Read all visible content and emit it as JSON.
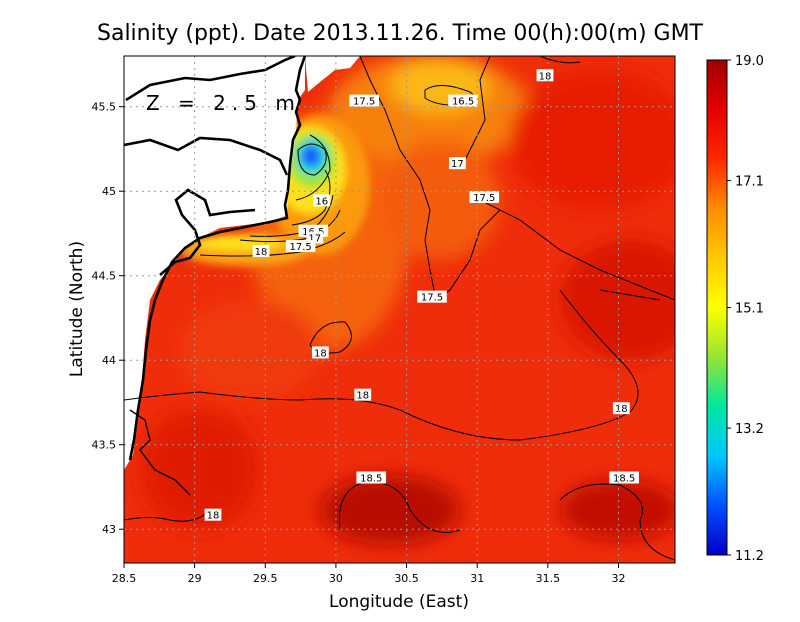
{
  "chart_data": {
    "type": "heatmap",
    "title": "Salinity (ppt). Date 2013.11.26. Time 00(h):00(m) GMT",
    "xlabel": "Longitude (East)",
    "ylabel": "Latitude (North)",
    "annotation": "Z = 2.5 m",
    "xlim": [
      28.5,
      32.4
    ],
    "ylim": [
      42.8,
      45.8
    ],
    "x_ticks": [
      {
        "value": 28.5,
        "label": "28.5"
      },
      {
        "value": 29,
        "label": "29"
      },
      {
        "value": 29.5,
        "label": "29.5"
      },
      {
        "value": 30,
        "label": "30"
      },
      {
        "value": 30.5,
        "label": "30.5"
      },
      {
        "value": 31,
        "label": "31"
      },
      {
        "value": 31.5,
        "label": "31.5"
      },
      {
        "value": 32,
        "label": "32"
      }
    ],
    "y_ticks": [
      {
        "value": 43,
        "label": "43"
      },
      {
        "value": 43.5,
        "label": "43.5"
      },
      {
        "value": 44,
        "label": "44"
      },
      {
        "value": 44.5,
        "label": "44.5"
      },
      {
        "value": 45,
        "label": "45"
      },
      {
        "value": 45.5,
        "label": "45.5"
      }
    ],
    "grid": true,
    "colorbar": {
      "min": 11.2,
      "max": 19.0,
      "ticks": [
        {
          "value": 19.0,
          "label": "19.0"
        },
        {
          "value": 17.1,
          "label": "17.1"
        },
        {
          "value": 15.1,
          "label": "15.1"
        },
        {
          "value": 13.2,
          "label": "13.2"
        },
        {
          "value": 11.2,
          "label": "11.2"
        }
      ],
      "colors": [
        "#0000c8",
        "#0050ff",
        "#00c8ff",
        "#00e6a0",
        "#96e632",
        "#ffff00",
        "#ffc800",
        "#ff8c00",
        "#ff2800",
        "#e60000",
        "#a00000"
      ]
    },
    "contour_labels": [
      {
        "text": "18",
        "x": 31.48,
        "y": 45.68
      },
      {
        "text": "17.5",
        "x": 30.2,
        "y": 45.53
      },
      {
        "text": "16.5",
        "x": 30.9,
        "y": 45.53
      },
      {
        "text": "17",
        "x": 30.86,
        "y": 45.16
      },
      {
        "text": "17.5",
        "x": 31.05,
        "y": 44.96
      },
      {
        "text": "16",
        "x": 29.9,
        "y": 44.94
      },
      {
        "text": "16.5",
        "x": 29.84,
        "y": 44.76
      },
      {
        "text": "17",
        "x": 29.85,
        "y": 44.72
      },
      {
        "text": "17.5",
        "x": 29.75,
        "y": 44.67
      },
      {
        "text": "18",
        "x": 29.47,
        "y": 44.64
      },
      {
        "text": "17.5",
        "x": 30.68,
        "y": 44.37
      },
      {
        "text": "18",
        "x": 29.89,
        "y": 44.04
      },
      {
        "text": "18",
        "x": 30.19,
        "y": 43.79
      },
      {
        "text": "18",
        "x": 32.02,
        "y": 43.71
      },
      {
        "text": "18.5",
        "x": 30.25,
        "y": 43.3
      },
      {
        "text": "18.5",
        "x": 32.04,
        "y": 43.3
      },
      {
        "text": "18",
        "x": 29.13,
        "y": 43.08
      }
    ]
  }
}
